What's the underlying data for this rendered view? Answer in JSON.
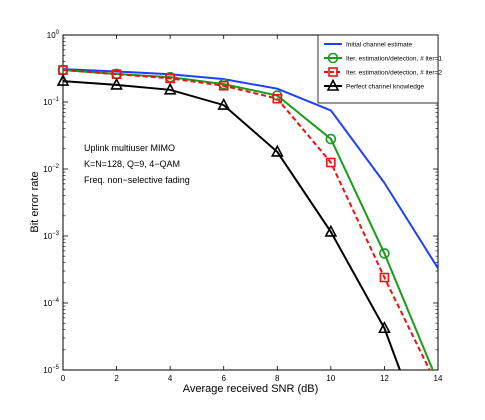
{
  "chart_data": {
    "type": "line",
    "xlabel": "Average received SNR (dB)",
    "ylabel": "Bit error rate",
    "xlim": [
      0,
      14
    ],
    "ylim_log10": [
      -5,
      0
    ],
    "yscale": "log",
    "grid": false,
    "legend_placement": "top-right",
    "x_ticks": [
      "0",
      "2",
      "4",
      "6",
      "8",
      "10",
      "12",
      "14"
    ],
    "y_ticks": [
      {
        "base": "10",
        "exp": "0",
        "value": 0
      },
      {
        "base": "10",
        "exp": "−1",
        "value": -1
      },
      {
        "base": "10",
        "exp": "−2",
        "value": -2
      },
      {
        "base": "10",
        "exp": "−3",
        "value": -3
      },
      {
        "base": "10",
        "exp": "−4",
        "value": -4
      },
      {
        "base": "10",
        "exp": "−5",
        "value": -5
      }
    ],
    "annotations": [
      "Uplink multiuser MIMO",
      "K=N=128,  Q=9,  4−QAM",
      "Freq. non−selective fading"
    ],
    "series": [
      {
        "name": "Initial channel estimate",
        "color": "#1f3fff",
        "style": "solid",
        "marker": "none",
        "x": [
          0,
          2,
          4,
          6,
          8,
          10,
          12,
          14
        ],
        "y": [
          0.31,
          0.285,
          0.26,
          0.22,
          0.158,
          0.075,
          0.0062,
          0.00033
        ]
      },
      {
        "name": "Iter. estimation/detection, # iter=1",
        "color": "#1a9b1a",
        "style": "solid",
        "marker": "circle",
        "x": [
          0,
          2,
          4,
          6,
          8,
          10,
          12,
          14
        ],
        "y": [
          0.3,
          0.262,
          0.235,
          0.185,
          0.125,
          0.028,
          0.00055,
          6.5e-06
        ]
      },
      {
        "name": "Iter. estimation/detection, # iter=2",
        "color": "#ee1111",
        "style": "dashed",
        "marker": "square",
        "x": [
          0,
          2,
          4,
          6,
          8,
          10,
          12,
          14
        ],
        "y": [
          0.3,
          0.26,
          0.225,
          0.175,
          0.112,
          0.0125,
          0.00024,
          5.5e-06
        ]
      },
      {
        "name": "Perfect channel knowledge",
        "color": "#000000",
        "style": "solid",
        "marker": "triangle",
        "x": [
          0,
          2,
          4,
          6,
          8,
          10,
          12,
          13
        ],
        "y": [
          0.205,
          0.18,
          0.152,
          0.09,
          0.018,
          0.00115,
          4.2e-05,
          3.5e-06
        ]
      }
    ]
  }
}
